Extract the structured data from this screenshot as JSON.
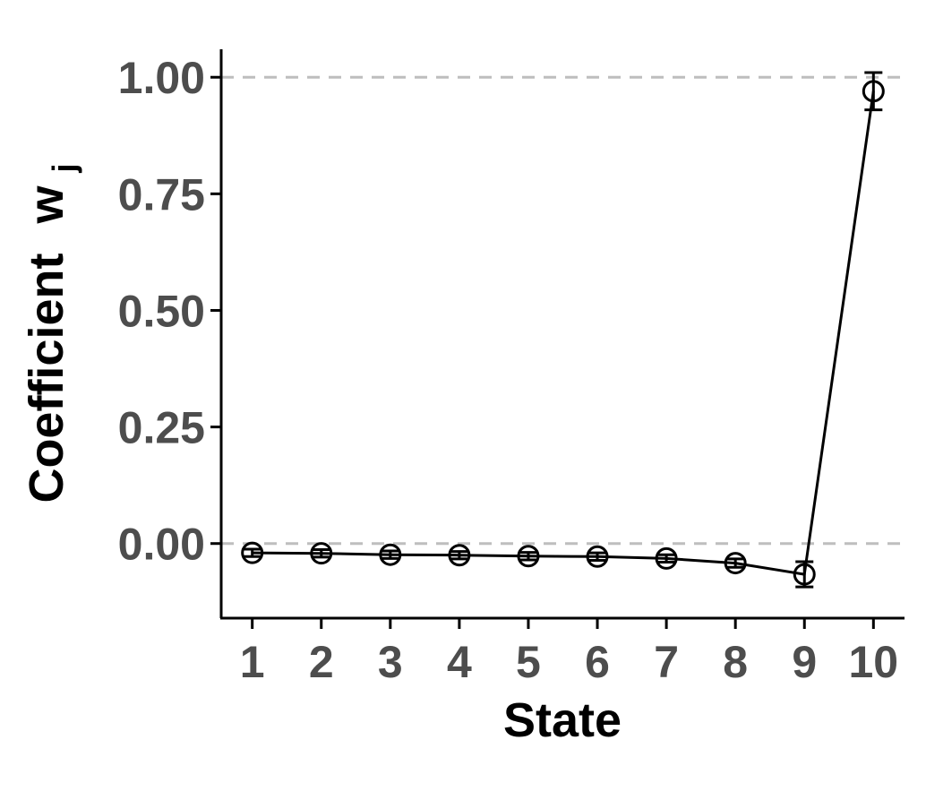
{
  "chart_data": {
    "type": "line",
    "xlabel": "State",
    "ylabel": "Coefficient",
    "ylabel_symbol": "w",
    "ylabel_subscript": "j",
    "x": [
      1,
      2,
      3,
      4,
      5,
      6,
      7,
      8,
      9,
      10
    ],
    "x_tick_labels": [
      "1",
      "2",
      "3",
      "4",
      "5",
      "6",
      "7",
      "8",
      "9",
      "10"
    ],
    "y_ticks": [
      0,
      0.25,
      0.5,
      0.75,
      1
    ],
    "y_tick_labels": [
      "0.00",
      "0.25",
      "0.50",
      "0.75",
      "1.00"
    ],
    "ylim": [
      -0.16,
      1.06
    ],
    "xlim": [
      0.55,
      10.45
    ],
    "reference_lines": [
      0,
      1
    ],
    "series": [
      {
        "values": [
          -0.02,
          -0.021,
          -0.024,
          -0.025,
          -0.027,
          -0.028,
          -0.032,
          -0.042,
          -0.066,
          0.97
        ],
        "error": [
          0.008,
          0.008,
          0.008,
          0.008,
          0.008,
          0.008,
          0.008,
          0.009,
          0.027,
          0.04
        ],
        "marker": "open-circle",
        "color": "#000000"
      }
    ],
    "grid": false,
    "legend": "none"
  }
}
